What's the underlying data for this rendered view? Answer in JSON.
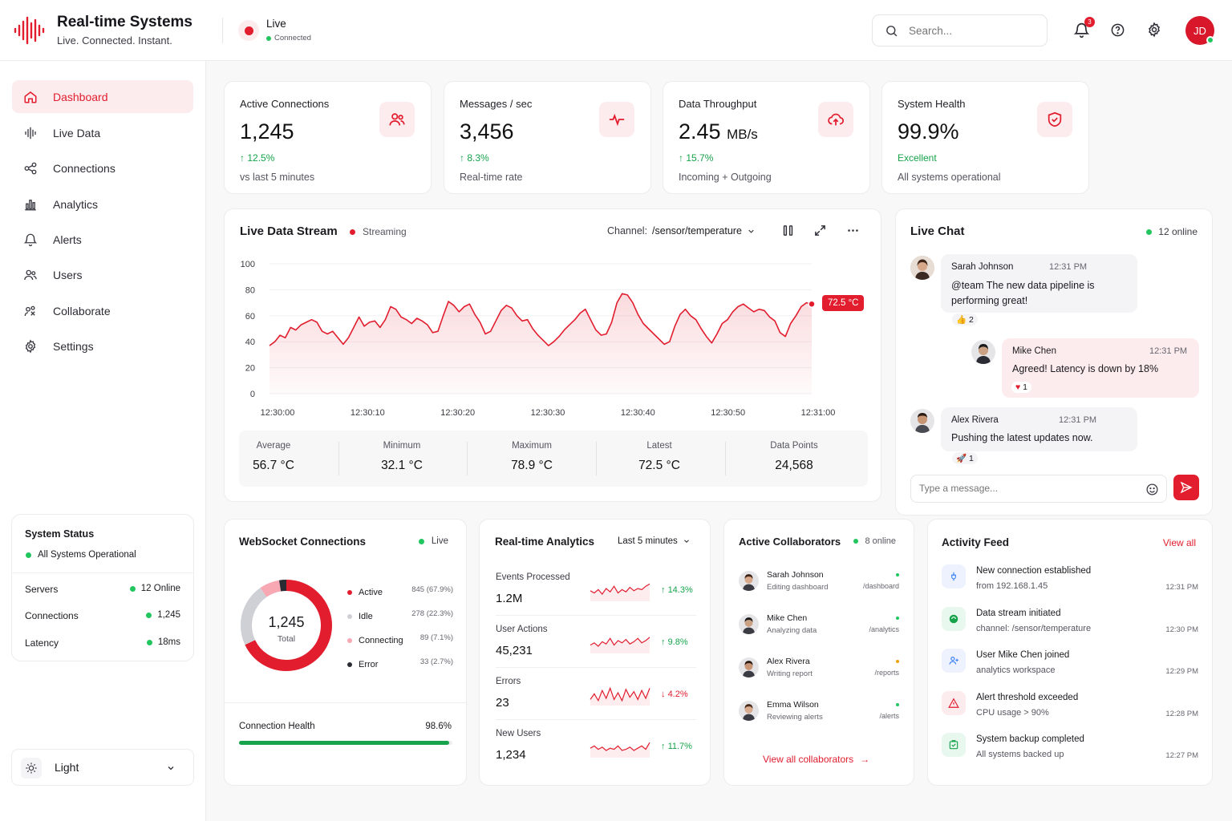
{
  "app": {
    "title": "Real-time Systems",
    "tagline": "Live. Connected. Instant.",
    "live_label": "Live",
    "connected_label": "Connected"
  },
  "header": {
    "search_placeholder": "Search...",
    "notif_count": "3",
    "avatar_initials": "JD"
  },
  "sidebar": {
    "items": [
      {
        "label": "Dashboard",
        "icon": "home-icon"
      },
      {
        "label": "Live Data",
        "icon": "wave-icon"
      },
      {
        "label": "Connections",
        "icon": "plug-icon"
      },
      {
        "label": "Analytics",
        "icon": "bar-chart-icon"
      },
      {
        "label": "Alerts",
        "icon": "bell-icon"
      },
      {
        "label": "Users",
        "icon": "users-icon"
      },
      {
        "label": "Collaborate",
        "icon": "collaborate-icon"
      },
      {
        "label": "Settings",
        "icon": "gear-icon"
      }
    ],
    "status": {
      "title": "System Status",
      "summary": "All Systems Operational",
      "rows": [
        {
          "label": "Servers",
          "value": "12 Online"
        },
        {
          "label": "Connections",
          "value": "1,245"
        },
        {
          "label": "Latency",
          "value": "18ms"
        }
      ]
    },
    "theme": "Light"
  },
  "kpis": [
    {
      "label": "Active Connections",
      "value": "1,245",
      "unit": "",
      "change": "12.5%",
      "sub": "vs last 5 minutes",
      "icon": "users-icon"
    },
    {
      "label": "Messages / sec",
      "value": "3,456",
      "unit": "",
      "change": "8.3%",
      "sub": "Real-time rate",
      "icon": "pulse-icon"
    },
    {
      "label": "Data Throughput",
      "value": "2.45",
      "unit": "MB/s",
      "change": "15.7%",
      "sub": "Incoming + Outgoing",
      "icon": "cloud-upload-icon"
    },
    {
      "label": "System Health",
      "value": "99.9%",
      "unit": "",
      "change": "Excellent",
      "sub": "All systems operational",
      "icon": "shield-icon"
    }
  ],
  "stream": {
    "title": "Live Data Stream",
    "status": "Streaming",
    "channel_label": "Channel:",
    "channel": "/sensor/temperature",
    "latest_tag": "72.5 °C",
    "stats": [
      {
        "label": "Average",
        "value": "56.7 °C"
      },
      {
        "label": "Minimum",
        "value": "32.1 °C"
      },
      {
        "label": "Maximum",
        "value": "78.9 °C"
      },
      {
        "label": "Latest",
        "value": "72.5 °C"
      },
      {
        "label": "Data Points",
        "value": "24,568"
      }
    ]
  },
  "chart_data": {
    "type": "area",
    "ylim": [
      0,
      100
    ],
    "y_ticks": [
      0,
      20,
      40,
      60,
      80,
      100
    ],
    "x_ticks": [
      "12:30:00",
      "12:30:10",
      "12:30:20",
      "12:30:30",
      "12:30:40",
      "12:30:50",
      "12:31:00"
    ],
    "values": [
      37,
      40,
      45,
      43,
      51,
      49,
      53,
      55,
      57,
      55,
      48,
      46,
      48,
      43,
      38,
      43,
      51,
      59,
      52,
      55,
      56,
      51,
      57,
      67,
      65,
      59,
      57,
      54,
      58,
      56,
      53,
      47,
      48,
      60,
      71,
      68,
      63,
      67,
      69,
      61,
      55,
      46,
      48,
      56,
      64,
      68,
      66,
      60,
      56,
      57,
      50,
      45,
      41,
      37,
      40,
      44,
      49,
      53,
      57,
      62,
      65,
      57,
      49,
      45,
      46,
      55,
      70,
      77,
      76,
      70,
      61,
      54,
      50,
      46,
      42,
      38,
      40,
      52,
      61,
      65,
      60,
      57,
      50,
      44,
      39,
      46,
      54,
      57,
      63,
      67,
      69,
      66,
      63,
      65,
      64,
      59,
      56,
      47,
      44,
      54,
      60,
      67,
      70,
      69
    ]
  },
  "chat": {
    "title": "Live Chat",
    "online": "12 online",
    "placeholder": "Type a message...",
    "messages": [
      {
        "name": "Sarah Johnson",
        "time": "12:31 PM",
        "text": "@team The new data pipeline is performing great!",
        "reaction": "2"
      },
      {
        "name": "Mike Chen",
        "time": "12:31 PM",
        "text": "Agreed! Latency is down by 18%",
        "reaction": "1"
      },
      {
        "name": "Alex Rivera",
        "time": "12:31 PM",
        "text": "Pushing the latest updates now.",
        "reaction": "1"
      }
    ]
  },
  "websocket": {
    "title": "WebSocket Connections",
    "live": "Live",
    "total": "1,245",
    "total_label": "Total",
    "legend": [
      {
        "label": "Active",
        "value": "845 (67.9%)",
        "color": "#e11d2e",
        "fraction": 0.679
      },
      {
        "label": "Idle",
        "value": "278 (22.3%)",
        "color": "#cfd0d6",
        "fraction": 0.223
      },
      {
        "label": "Connecting",
        "value": "89 (7.1%)",
        "color": "#f7a8b2",
        "fraction": 0.071
      },
      {
        "label": "Error",
        "value": "33 (2.7%)",
        "color": "#2b2b33",
        "fraction": 0.027
      }
    ],
    "health_label": "Connection Health",
    "health_value": "98.6%",
    "health_fraction": 0.986
  },
  "analytics": {
    "title": "Real-time Analytics",
    "range": "Last 5 minutes",
    "rows": [
      {
        "label": "Events Processed",
        "value": "1.2M",
        "change": "14.3%",
        "dir": "up"
      },
      {
        "label": "User Actions",
        "value": "45,231",
        "change": "9.8%",
        "dir": "up"
      },
      {
        "label": "Errors",
        "value": "23",
        "change": "4.2%",
        "dir": "down"
      },
      {
        "label": "New Users",
        "value": "1,234",
        "change": "11.7%",
        "dir": "up"
      }
    ]
  },
  "collaborators": {
    "title": "Active Collaborators",
    "online": "8 online",
    "view_all": "View all collaborators",
    "people": [
      {
        "name": "Sarah Johnson",
        "activity": "Editing dashboard",
        "path": "/dashboard",
        "status": "#22c55e"
      },
      {
        "name": "Mike Chen",
        "activity": "Analyzing data",
        "path": "/analytics",
        "status": "#22c55e"
      },
      {
        "name": "Alex Rivera",
        "activity": "Writing report",
        "path": "/reports",
        "status": "#f59e0b"
      },
      {
        "name": "Emma Wilson",
        "activity": "Reviewing alerts",
        "path": "/alerts",
        "status": "#22c55e"
      }
    ]
  },
  "activity": {
    "title": "Activity Feed",
    "view_all": "View all",
    "items": [
      {
        "title": "New connection established",
        "detail": "from 192.168.1.45",
        "time": "12:31 PM",
        "icon": "plug-icon"
      },
      {
        "title": "Data stream initiated",
        "detail": "channel: /sensor/temperature",
        "time": "12:30 PM",
        "icon": "signal-icon"
      },
      {
        "title": "User Mike Chen joined",
        "detail": "analytics workspace",
        "time": "12:29 PM",
        "icon": "user-plus-icon"
      },
      {
        "title": "Alert threshold exceeded",
        "detail": "CPU usage > 90%",
        "time": "12:28 PM",
        "icon": "warning-icon"
      },
      {
        "title": "System backup completed",
        "detail": "All systems backed up",
        "time": "12:27 PM",
        "icon": "backup-icon"
      }
    ]
  }
}
